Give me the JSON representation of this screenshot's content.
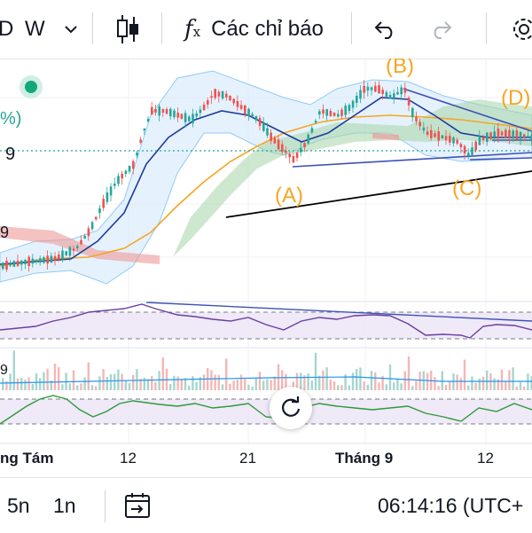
{
  "toolbar": {
    "symbol_fragment": "D",
    "interval": "W",
    "indicators_label": "Các chỉ báo"
  },
  "chart": {
    "wave_labels": {
      "a": "(A)",
      "b": "(B)",
      "c": "(C)",
      "d": "(D)"
    },
    "left_fragments": {
      "pct": "%)",
      "nine1": "9",
      "nine2": "9",
      "nine3": "9"
    },
    "time_axis": [
      "ng Tám",
      "12",
      "21",
      "Tháng 9",
      "12"
    ],
    "colors": {
      "up": "#26a69a",
      "down": "#ef5350",
      "wave_label": "#f5a623",
      "bollinger": "#90caf9",
      "ma_slow": "#f5a623",
      "ma_fast": "#1e3a9e",
      "rsi": "#6a3fa0",
      "cloud_green": "#a5d6a7",
      "cloud_red": "#ef9a9a",
      "trendline": "#3f51b5",
      "oscillator": "#2e9a3a"
    }
  },
  "bottombar": {
    "range_5n": "5n",
    "range_1n": "1n",
    "clock": "06:14:16 (UTC+"
  }
}
